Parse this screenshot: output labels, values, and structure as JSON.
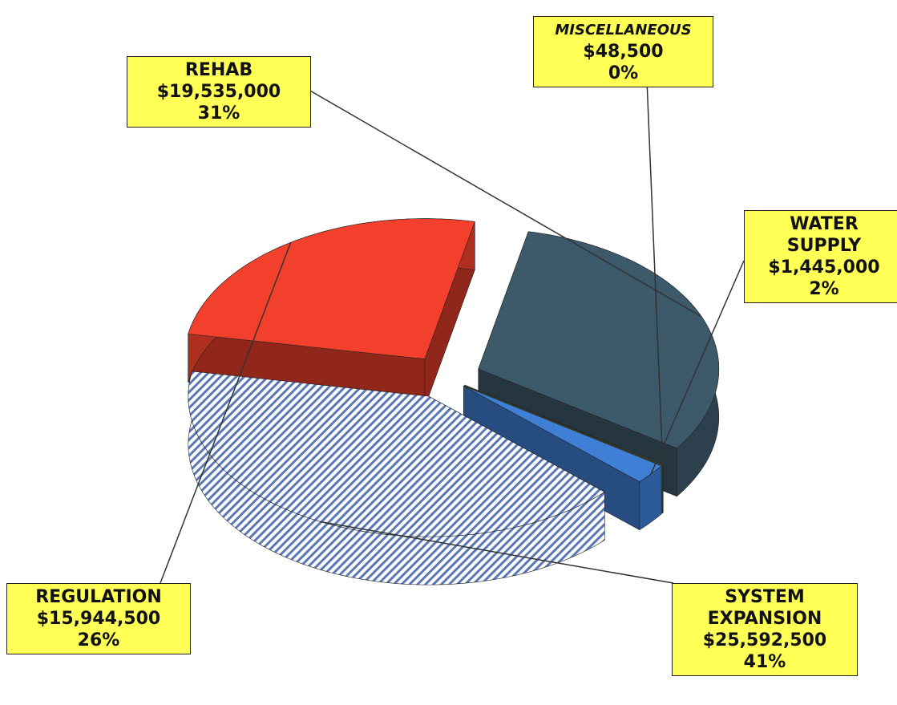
{
  "chart_data": {
    "type": "pie",
    "categories": [
      "REHAB",
      "MISCELLANEOUS",
      "WATER SUPPLY",
      "SYSTEM EXPANSION",
      "REGULATION"
    ],
    "values": [
      19535000,
      48500,
      1445000,
      25592500,
      15944500
    ],
    "value_labels": [
      "$19,535,000",
      "$48,500",
      "$1,445,000",
      "$25,592,500",
      "$15,944,500"
    ],
    "shares": [
      31,
      0,
      2,
      41,
      26
    ],
    "share_labels": [
      "31%",
      "0%",
      "2%",
      "41%",
      "26%"
    ],
    "colors": [
      "#3d5a6b",
      "#7a8a3a",
      "#3f7fd6",
      "#b4c7ea",
      "#f2402c"
    ]
  }
}
